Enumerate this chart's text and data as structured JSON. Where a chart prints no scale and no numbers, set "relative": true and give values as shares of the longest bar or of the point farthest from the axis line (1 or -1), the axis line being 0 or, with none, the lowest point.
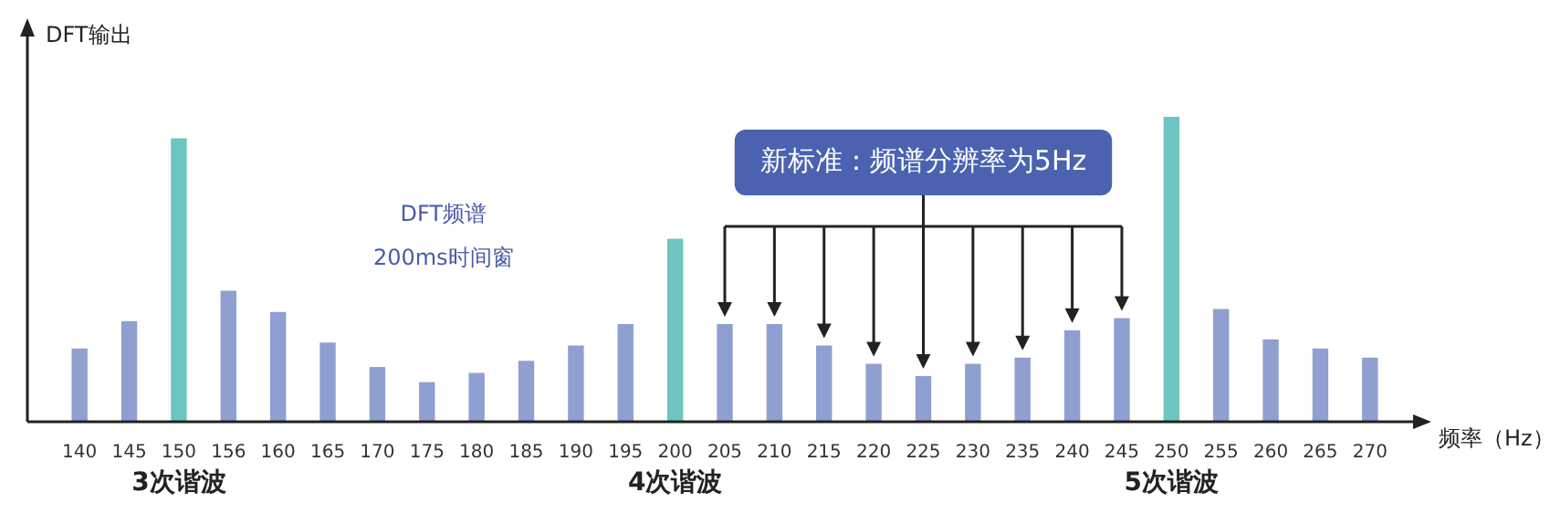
{
  "chart_data": {
    "type": "bar",
    "relative": true,
    "ylabel": "DFT输出",
    "xlabel": "频率（Hz）",
    "categories": [
      "140",
      "145",
      "150",
      "156",
      "160",
      "165",
      "170",
      "175",
      "180",
      "185",
      "190",
      "195",
      "200",
      "205",
      "210",
      "215",
      "220",
      "225",
      "230",
      "235",
      "240",
      "245",
      "250",
      "255",
      "260",
      "265",
      "270"
    ],
    "values": [
      0.24,
      0.33,
      0.93,
      0.43,
      0.36,
      0.26,
      0.18,
      0.13,
      0.16,
      0.2,
      0.25,
      0.32,
      0.6,
      0.32,
      0.32,
      0.25,
      0.19,
      0.15,
      0.19,
      0.21,
      0.3,
      0.34,
      1,
      0.37,
      0.27,
      0.24,
      0.21
    ],
    "colors": [
      "#8f9fd0",
      "#8f9fd0",
      "#6cc5bf",
      "#8f9fd0",
      "#8f9fd0",
      "#8f9fd0",
      "#8f9fd0",
      "#8f9fd0",
      "#8f9fd0",
      "#8f9fd0",
      "#8f9fd0",
      "#8f9fd0",
      "#6cc5bf",
      "#8f9fd0",
      "#8f9fd0",
      "#8f9fd0",
      "#8f9fd0",
      "#8f9fd0",
      "#8f9fd0",
      "#8f9fd0",
      "#8f9fd0",
      "#8f9fd0",
      "#6cc5bf",
      "#8f9fd0",
      "#8f9fd0",
      "#8f9fd0",
      "#8f9fd0"
    ],
    "annotations": [
      "DFT频谱",
      "200ms时间窗",
      "新标准：频谱分辨率为5Hz",
      "3次谐波",
      "4次谐波",
      "5次谐波"
    ],
    "grid": false,
    "legend": false
  }
}
